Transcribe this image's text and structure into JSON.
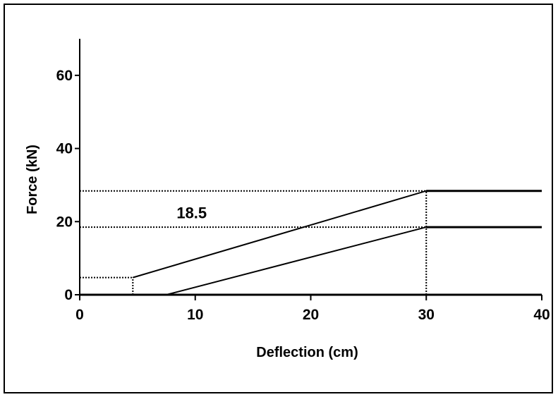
{
  "chart_data": {
    "type": "line",
    "xlabel": "Deflection (cm)",
    "ylabel": "Force (kN)",
    "xlim": [
      0,
      40
    ],
    "ylim": [
      0,
      70
    ],
    "x_ticks": [
      "0",
      "10",
      "20",
      "30",
      "40"
    ],
    "y_ticks": [
      "0",
      "20",
      "40",
      "60"
    ],
    "grid": false,
    "legend": "none",
    "series": [
      {
        "x": [
          4.6,
          30,
          40
        ],
        "y": [
          4.7,
          28.4,
          28.4
        ],
        "style": "solid"
      },
      {
        "x": [
          7.5,
          30,
          40
        ],
        "y": [
          0,
          18.5,
          18.5
        ],
        "style": "solid"
      }
    ],
    "reference_lines": [
      {
        "orientation": "horizontal",
        "y": 28.4,
        "x_from": 0,
        "x_to": 30,
        "style": "dotted"
      },
      {
        "orientation": "horizontal",
        "y": 18.5,
        "x_from": 0,
        "x_to": 30,
        "style": "dotted"
      },
      {
        "orientation": "horizontal",
        "y": 4.7,
        "x_from": 0,
        "x_to": 4.6,
        "style": "dotted"
      },
      {
        "orientation": "vertical",
        "x": 30,
        "y_from": 0,
        "y_to": 28.4,
        "style": "dotted"
      },
      {
        "orientation": "vertical",
        "x": 4.6,
        "y_from": 0,
        "y_to": 4.7,
        "style": "dotted"
      }
    ],
    "annotations": [
      {
        "text": "18.5",
        "x": 10,
        "y": 22.5
      }
    ]
  },
  "colors": {
    "line": "#000000",
    "background": "#ffffff"
  }
}
